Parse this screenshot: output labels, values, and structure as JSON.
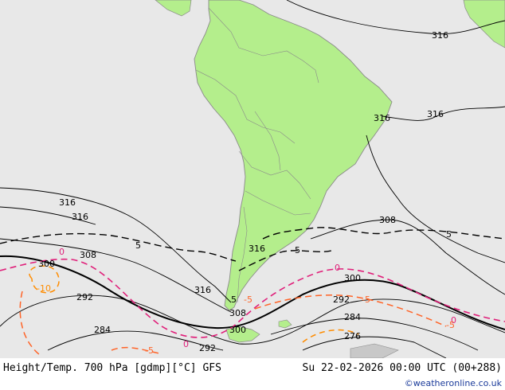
{
  "footer": {
    "title": "Height/Temp. 700 hPa [gdmp][°C] GFS",
    "valid": "Su 22-02-2026 00:00 UTC (00+288)",
    "credit": "©weatheronline.co.uk"
  },
  "colors": {
    "ocean": "#e8e8e8",
    "land": "#b4ee8c",
    "coast": "#8a8a8a",
    "height_contour": "#000000",
    "temp_zero": "#e0207a",
    "temp_negative": "#ff6428",
    "temp_cold": "#ff8c00"
  },
  "contour_labels": {
    "height": [
      "316",
      "316",
      "316",
      "316",
      "316",
      "316",
      "316",
      "308",
      "308",
      "308",
      "300",
      "300",
      "300",
      "292",
      "292",
      "292",
      "284",
      "284",
      "276"
    ],
    "temperature": [
      "5",
      "5",
      "5",
      "5",
      "0",
      "0",
      "0",
      "0",
      "-5",
      "-5",
      "-5",
      "-10",
      "-5"
    ]
  }
}
